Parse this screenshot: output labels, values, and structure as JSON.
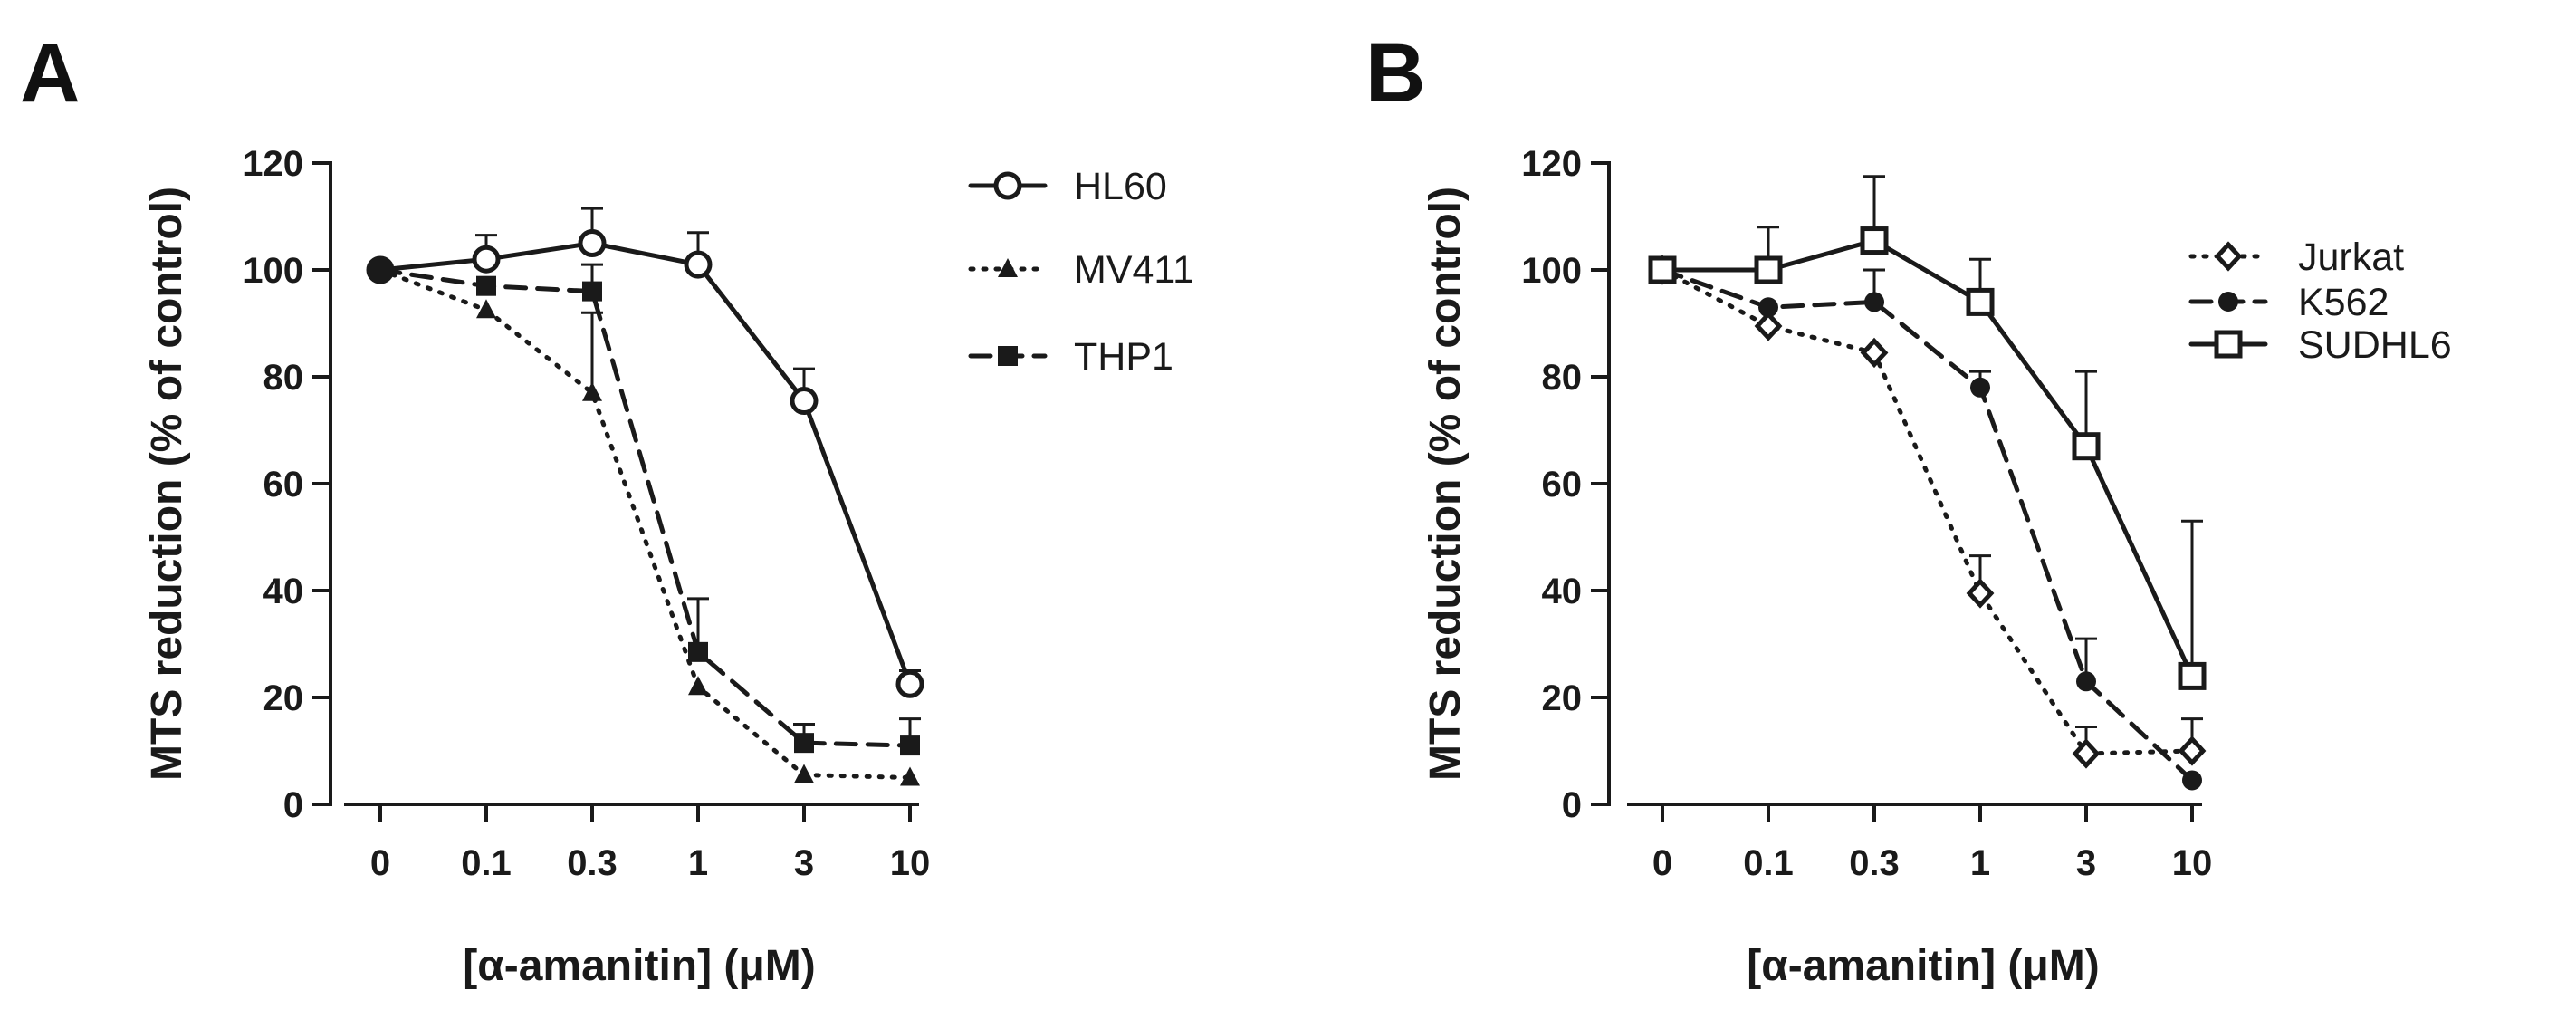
{
  "chart_data": [
    {
      "panel": "A",
      "type": "line",
      "ylabel": "MTS reduction (% of control)",
      "xlabel": "[α-amanitin] (μM)",
      "categories": [
        "0",
        "0.1",
        "0.3",
        "1",
        "3",
        "10"
      ],
      "ylim": [
        0,
        120
      ],
      "yticks": [
        "0",
        "20",
        "40",
        "60",
        "80",
        "100",
        "120"
      ],
      "grid": false,
      "legend_position": "right",
      "series": [
        {
          "name": "HL60",
          "marker": "open-circle",
          "line": "solid",
          "color": "#1a1a1a",
          "values": [
            100,
            102,
            105,
            101,
            75.5,
            22.5
          ],
          "error": [
            0,
            4.5,
            6.5,
            6,
            6,
            2.5
          ]
        },
        {
          "name": "MV411",
          "marker": "triangle",
          "line": "dotted",
          "color": "#1a1a1a",
          "values": [
            100,
            92.5,
            77,
            22,
            5.5,
            5
          ],
          "error": [
            0,
            0,
            15,
            0,
            0,
            0
          ]
        },
        {
          "name": "THP1",
          "marker": "square",
          "line": "dashed",
          "color": "#1a1a1a",
          "values": [
            100,
            97,
            96,
            28.5,
            11.5,
            11
          ],
          "error": [
            0,
            0,
            5,
            10,
            3.5,
            5
          ]
        }
      ]
    },
    {
      "panel": "B",
      "type": "line",
      "ylabel": "MTS reduction (% of control)",
      "xlabel": "[α-amanitin] (μM)",
      "categories": [
        "0",
        "0.1",
        "0.3",
        "1",
        "3",
        "10"
      ],
      "ylim": [
        0,
        120
      ],
      "yticks": [
        "0",
        "20",
        "40",
        "60",
        "80",
        "100",
        "120"
      ],
      "grid": false,
      "legend_position": "right",
      "series": [
        {
          "name": "Jurkat",
          "marker": "open-diamond",
          "line": "dotted",
          "color": "#1a1a1a",
          "values": [
            100,
            89.5,
            84.5,
            39.5,
            9.5,
            10
          ],
          "error": [
            0,
            0,
            0,
            7,
            5,
            6
          ]
        },
        {
          "name": "K562",
          "marker": "circle",
          "line": "dashed",
          "color": "#1a1a1a",
          "values": [
            100,
            93,
            94,
            78,
            23,
            4.5
          ],
          "error": [
            0,
            0,
            6,
            3,
            8,
            0
          ]
        },
        {
          "name": "SUDHL6",
          "marker": "open-square",
          "line": "solid",
          "color": "#1a1a1a",
          "values": [
            100,
            100,
            105.5,
            94,
            67,
            24
          ],
          "error": [
            0,
            8,
            12,
            8,
            14,
            29
          ]
        }
      ]
    }
  ]
}
